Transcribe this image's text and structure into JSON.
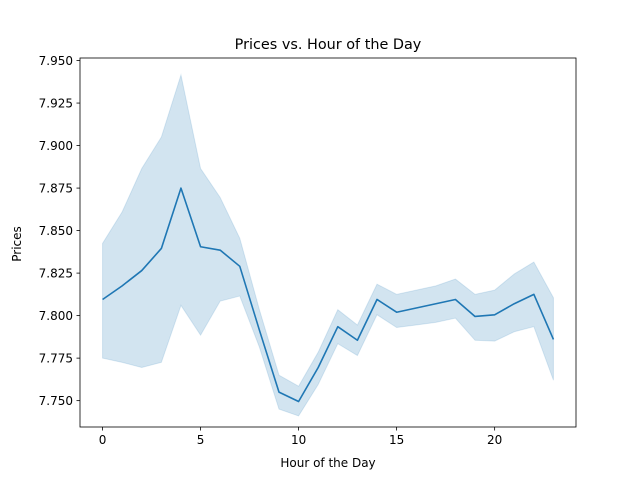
{
  "chart_data": {
    "type": "line",
    "title": "Prices vs. Hour of the Day",
    "xlabel": "Hour of the Day",
    "ylabel": "Prices",
    "xlim": [
      -1.15,
      24.15
    ],
    "ylim": [
      7.7345,
      7.9515
    ],
    "xticks": [
      0,
      5,
      10,
      15,
      20
    ],
    "xtick_labels": [
      "0",
      "5",
      "10",
      "15",
      "20"
    ],
    "yticks": [
      7.75,
      7.775,
      7.8,
      7.825,
      7.85,
      7.875,
      7.9,
      7.925,
      7.95
    ],
    "ytick_labels": [
      "7.750",
      "7.775",
      "7.800",
      "7.825",
      "7.850",
      "7.875",
      "7.900",
      "7.925",
      "7.950"
    ],
    "grid": false,
    "legend": "none",
    "colors": {
      "line": "#1f77b4",
      "band": "#1f77b4",
      "axes": "#000000"
    },
    "series": [
      {
        "x": [
          0,
          1,
          2,
          3,
          4,
          5,
          6,
          7,
          8,
          9,
          10,
          11,
          12,
          13,
          14,
          15,
          16,
          17,
          18,
          19,
          20,
          21,
          22,
          23
        ],
        "values": [
          7.8095,
          7.8175,
          7.8265,
          7.8395,
          7.875,
          7.8405,
          7.8385,
          7.829,
          7.7915,
          7.755,
          7.7495,
          7.7695,
          7.7935,
          7.7855,
          7.8095,
          7.802,
          7.8045,
          7.807,
          7.8095,
          7.7995,
          7.8005,
          7.807,
          7.8125,
          7.786
        ],
        "ci_lower": [
          7.775,
          7.7725,
          7.7695,
          7.7725,
          7.806,
          7.7885,
          7.8085,
          7.8115,
          7.7815,
          7.745,
          7.741,
          7.7595,
          7.7835,
          7.7765,
          7.8005,
          7.793,
          7.7945,
          7.796,
          7.7985,
          7.7855,
          7.785,
          7.7905,
          7.7935,
          7.762
        ],
        "ci_upper": [
          7.8425,
          7.861,
          7.8865,
          7.905,
          7.9415,
          7.8865,
          7.8695,
          7.8455,
          7.8035,
          7.765,
          7.7585,
          7.7785,
          7.8035,
          7.7945,
          7.8185,
          7.8125,
          7.815,
          7.8175,
          7.8215,
          7.8125,
          7.815,
          7.8245,
          7.8315,
          7.8105
        ]
      }
    ]
  }
}
